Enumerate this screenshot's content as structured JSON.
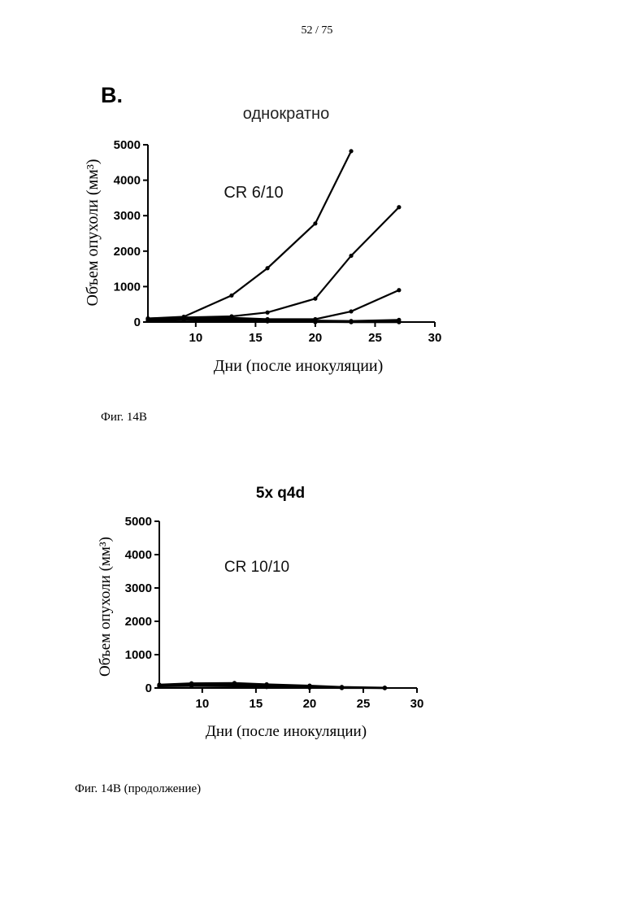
{
  "page": {
    "page_number": "52 / 75",
    "panel_letter": "B.",
    "caption_1": "Фиг. 14В",
    "caption_2": "Фиг. 14В (продолжение)"
  },
  "charts": [
    {
      "annotation": "CR 6/10"
    },
    {
      "annotation": "CR 10/10"
    }
  ],
  "chart_data": [
    {
      "type": "line",
      "title": "однократно",
      "xlabel": "Дни (после инокуляции)",
      "ylabel": "Объем опухоли (мм³)",
      "xlim": [
        6,
        30
      ],
      "ylim": [
        0,
        5000
      ],
      "xticks": [
        10,
        15,
        20,
        25,
        30
      ],
      "yticks": [
        0,
        1000,
        2000,
        3000,
        4000,
        5000
      ],
      "annotation": "CR 6/10",
      "series": [
        {
          "x": [
            6,
            9,
            13,
            16,
            20,
            23
          ],
          "y": [
            100,
            150,
            750,
            1520,
            2780,
            4820
          ]
        },
        {
          "x": [
            6,
            9,
            13,
            16,
            20,
            23,
            27
          ],
          "y": [
            100,
            130,
            160,
            270,
            660,
            1870,
            3240
          ]
        },
        {
          "x": [
            6,
            9,
            13,
            16,
            20,
            23,
            27
          ],
          "y": [
            90,
            110,
            120,
            80,
            80,
            300,
            900
          ]
        },
        {
          "x": [
            6,
            9,
            13,
            16,
            20,
            23,
            27
          ],
          "y": [
            80,
            100,
            110,
            60,
            40,
            30,
            60
          ]
        },
        {
          "x": [
            6,
            9,
            13,
            16,
            20,
            23,
            27
          ],
          "y": [
            70,
            90,
            80,
            50,
            20,
            10,
            10
          ]
        },
        {
          "x": [
            6,
            9,
            13,
            16,
            20,
            23,
            27
          ],
          "y": [
            60,
            80,
            70,
            40,
            10,
            0,
            0
          ]
        },
        {
          "x": [
            6,
            9,
            13,
            16,
            20,
            23,
            27
          ],
          "y": [
            50,
            60,
            60,
            30,
            5,
            0,
            0
          ]
        },
        {
          "x": [
            6,
            9,
            13,
            16,
            20,
            23,
            27
          ],
          "y": [
            40,
            50,
            40,
            20,
            0,
            0,
            0
          ]
        }
      ]
    },
    {
      "type": "line",
      "title": "5x q4d",
      "xlabel": "Дни (после инокуляции)",
      "ylabel": "Объем опухоли (мм³)",
      "xlim": [
        6,
        30
      ],
      "ylim": [
        0,
        5000
      ],
      "xticks": [
        10,
        15,
        20,
        25,
        30
      ],
      "yticks": [
        0,
        1000,
        2000,
        3000,
        4000,
        5000
      ],
      "annotation": "CR 10/10",
      "series": [
        {
          "x": [
            6,
            9,
            13,
            16,
            20,
            23,
            27
          ],
          "y": [
            100,
            140,
            150,
            110,
            70,
            30,
            10
          ]
        },
        {
          "x": [
            6,
            9,
            13,
            16,
            20,
            23,
            27
          ],
          "y": [
            90,
            120,
            130,
            90,
            50,
            20,
            5
          ]
        },
        {
          "x": [
            6,
            9,
            13,
            16,
            20,
            23,
            27
          ],
          "y": [
            80,
            100,
            110,
            80,
            40,
            15,
            0
          ]
        },
        {
          "x": [
            6,
            9,
            13,
            16,
            20,
            23,
            27
          ],
          "y": [
            70,
            90,
            90,
            60,
            30,
            10,
            0
          ]
        },
        {
          "x": [
            6,
            9,
            13,
            16,
            20,
            23,
            27
          ],
          "y": [
            60,
            70,
            70,
            40,
            20,
            5,
            0
          ]
        },
        {
          "x": [
            6,
            9,
            13,
            16,
            20,
            23,
            27
          ],
          "y": [
            50,
            60,
            50,
            30,
            10,
            0,
            0
          ]
        }
      ]
    }
  ]
}
